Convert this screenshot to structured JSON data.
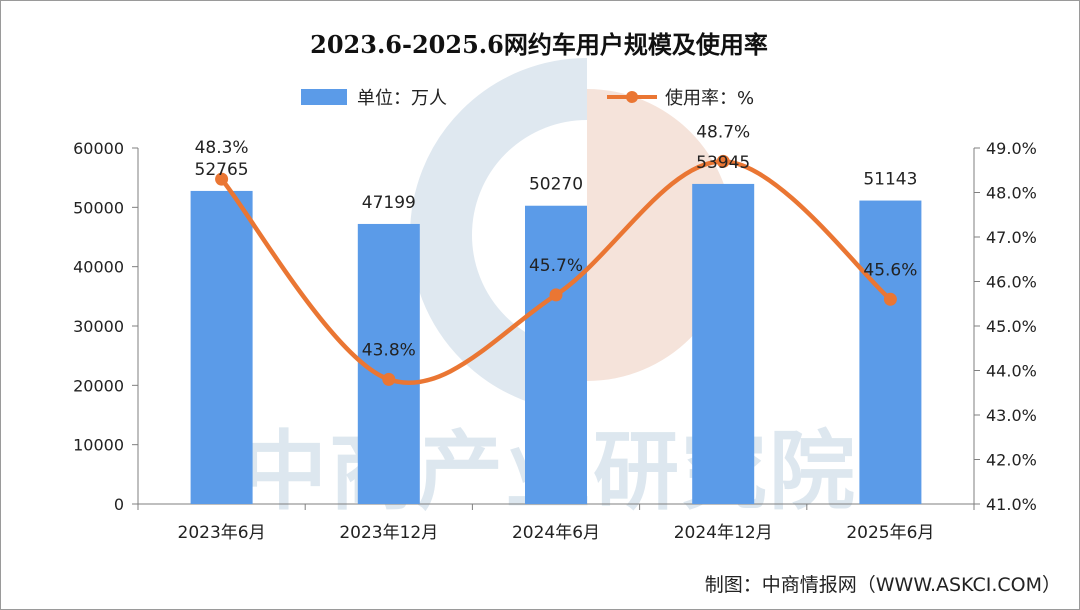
{
  "watermark_text": "中商产业研究院",
  "credit": "制图：中商情报网（WWW.ASKCI.COM）",
  "colors": {
    "bar": "#5b9be8",
    "line": "#ea7633",
    "axis": "#7f7f7f",
    "watermark": "#dde7ef"
  },
  "chart_data": {
    "type": "bar",
    "title": "2023.6-2025.6网约车用户规模及使用率",
    "categories": [
      "2023年6月",
      "2023年12月",
      "2024年6月",
      "2024年12月",
      "2025年6月"
    ],
    "series": [
      {
        "name": "单位：万人",
        "type": "bar",
        "axis": "left",
        "values": [
          52765,
          47199,
          50270,
          53945,
          51143
        ],
        "labels": [
          "52765",
          "47199",
          "50270",
          "53945",
          "51143"
        ]
      },
      {
        "name": "使用率：%",
        "type": "line",
        "axis": "right",
        "values": [
          48.3,
          43.8,
          45.7,
          48.7,
          45.6
        ],
        "labels": [
          "48.3%",
          "43.8%",
          "45.7%",
          "48.7%",
          "45.6%"
        ]
      }
    ],
    "y_left": {
      "min": 0,
      "max": 60000,
      "step": 10000,
      "ticks": [
        "0",
        "10000",
        "20000",
        "30000",
        "40000",
        "50000",
        "60000"
      ]
    },
    "y_right": {
      "min": 41.0,
      "max": 49.0,
      "step": 1.0,
      "ticks": [
        "41.0%",
        "42.0%",
        "43.0%",
        "44.0%",
        "45.0%",
        "46.0%",
        "47.0%",
        "48.0%",
        "49.0%"
      ]
    },
    "xlabel": "",
    "ylabel": "",
    "grid": false,
    "legend_position": "top"
  }
}
